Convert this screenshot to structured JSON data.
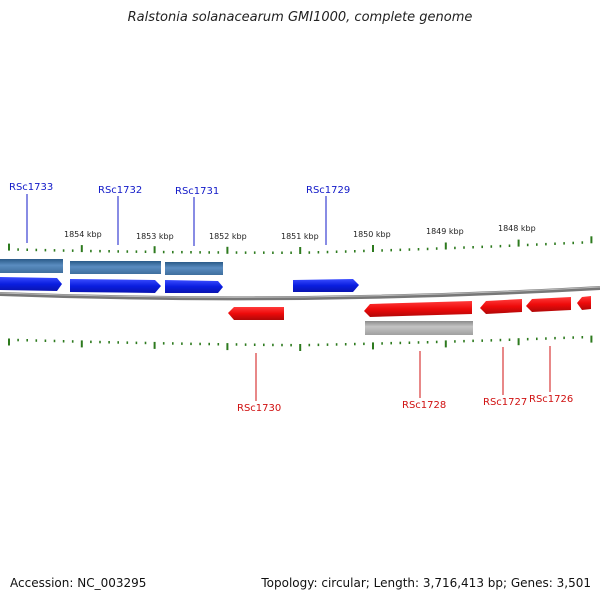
{
  "title": "Ralstonia solanacearum GMI1000, complete genome",
  "footer": {
    "accession": "Accession: NC_003295",
    "summary": "Topology: circular; Length: 3,716,413 bp; Genes: 3,501"
  },
  "colors": {
    "forward_gene": "#0a1ee0",
    "forward_cds": "#4f86b8",
    "reverse_gene": "#ee0a0a",
    "reverse_cds": "#a8a8a8",
    "backbone": "#777777",
    "ticks": "#2d7a1e",
    "forward_label": "#1018c8",
    "reverse_label": "#d01010"
  },
  "scale_labels": [
    "1854 kbp",
    "1853 kbp",
    "1852 kbp",
    "1851 kbp",
    "1850 kbp",
    "1849 kbp",
    "1848 kbp"
  ],
  "forward_labels": [
    "RSc1733",
    "RSc1732",
    "RSc1731",
    "RSc1729"
  ],
  "reverse_labels": [
    "RSc1730",
    "RSc1728",
    "RSc1727",
    "RSc1726"
  ]
}
